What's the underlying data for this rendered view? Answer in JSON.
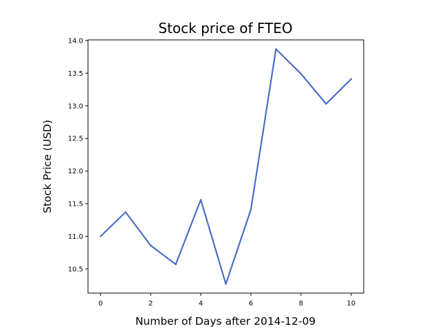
{
  "chart_data": {
    "type": "line",
    "title": "Stock price of FTEO",
    "xlabel": "Number of Days after 2014-12-09",
    "ylabel": "Stock Price (USD)",
    "x": [
      0,
      1,
      2,
      3,
      4,
      5,
      6,
      7,
      8,
      9,
      10
    ],
    "series": [
      {
        "values": [
          11.0,
          11.37,
          10.86,
          10.57,
          11.56,
          10.27,
          11.41,
          13.87,
          13.49,
          13.03,
          13.41
        ],
        "color": "#4a6cc9"
      }
    ],
    "xlim": [
      -0.5,
      10.5
    ],
    "ylim": [
      10.13,
      14.01
    ],
    "xticks": [
      "0",
      "2",
      "4",
      "6",
      "8",
      "10"
    ],
    "yticks": [
      "10.5",
      "11.0",
      "11.5",
      "12.0",
      "12.5",
      "13.0",
      "13.5",
      "14.0"
    ],
    "grid": false
  }
}
